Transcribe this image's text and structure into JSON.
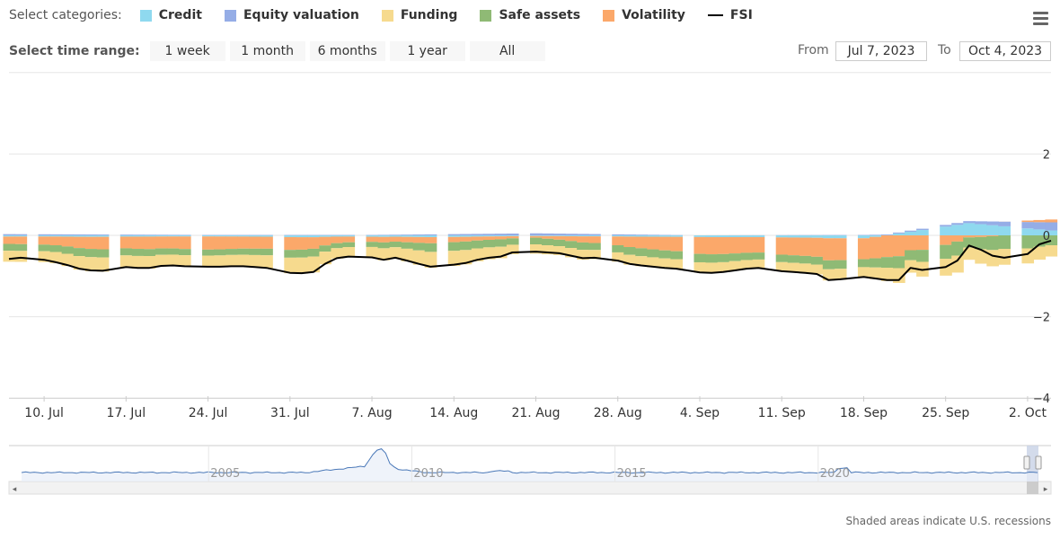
{
  "legend": {
    "title": "Select categories:",
    "items": [
      {
        "label": "Credit",
        "color": "#8fd9ef",
        "type": "area"
      },
      {
        "label": "Equity valuation",
        "color": "#95ade6",
        "type": "area"
      },
      {
        "label": "Funding",
        "color": "#f6da8e",
        "type": "area"
      },
      {
        "label": "Safe assets",
        "color": "#8fba75",
        "type": "area"
      },
      {
        "label": "Volatility",
        "color": "#fba86a",
        "type": "area"
      },
      {
        "label": "FSI",
        "color": "#000000",
        "type": "line"
      }
    ]
  },
  "menu": {
    "icon": "hamburger-menu-icon"
  },
  "range_selector": {
    "title": "Select time range:",
    "buttons": [
      "1 week",
      "1 month",
      "6 months",
      "1 year",
      "All"
    ],
    "from_label": "From",
    "from_value": "Jul 7, 2023",
    "to_label": "To",
    "to_value": "Oct 4, 2023"
  },
  "footnote": "Shaded areas indicate U.S. recessions",
  "chart_data": {
    "type": "area",
    "stacked": true,
    "x_start": "2023-07-07",
    "x_end": "2023-10-04",
    "x_tick_labels": [
      "10. Jul",
      "17. Jul",
      "24. Jul",
      "31. Jul",
      "7. Aug",
      "14. Aug",
      "21. Aug",
      "28. Aug",
      "4. Sep",
      "11. Sep",
      "18. Sep",
      "25. Sep",
      "2. Oct"
    ],
    "y_tick_labels": [
      "2",
      "0",
      "−2",
      "−4"
    ],
    "ylim": [
      -4,
      4
    ],
    "grid": true,
    "legend_position": "top-left",
    "fsi_points": [
      {
        "date": "2023-07-07",
        "value": -0.58
      },
      {
        "date": "2023-07-08",
        "value": -0.55
      },
      {
        "date": "2023-07-10",
        "value": -0.6
      },
      {
        "date": "2023-07-11",
        "value": -0.66
      },
      {
        "date": "2023-07-12",
        "value": -0.73
      },
      {
        "date": "2023-07-13",
        "value": -0.82
      },
      {
        "date": "2023-07-14",
        "value": -0.86
      },
      {
        "date": "2023-07-15",
        "value": -0.87
      },
      {
        "date": "2023-07-17",
        "value": -0.78
      },
      {
        "date": "2023-07-18",
        "value": -0.8
      },
      {
        "date": "2023-07-19",
        "value": -0.8
      },
      {
        "date": "2023-07-20",
        "value": -0.75
      },
      {
        "date": "2023-07-21",
        "value": -0.74
      },
      {
        "date": "2023-07-22",
        "value": -0.76
      },
      {
        "date": "2023-07-24",
        "value": -0.77
      },
      {
        "date": "2023-07-25",
        "value": -0.77
      },
      {
        "date": "2023-07-26",
        "value": -0.76
      },
      {
        "date": "2023-07-27",
        "value": -0.76
      },
      {
        "date": "2023-07-28",
        "value": -0.78
      },
      {
        "date": "2023-07-29",
        "value": -0.8
      },
      {
        "date": "2023-07-31",
        "value": -0.92
      },
      {
        "date": "2023-08-01",
        "value": -0.93
      },
      {
        "date": "2023-08-02",
        "value": -0.9
      },
      {
        "date": "2023-08-03",
        "value": -0.7
      },
      {
        "date": "2023-08-04",
        "value": -0.56
      },
      {
        "date": "2023-08-05",
        "value": -0.52
      },
      {
        "date": "2023-08-07",
        "value": -0.54
      },
      {
        "date": "2023-08-08",
        "value": -0.6
      },
      {
        "date": "2023-08-09",
        "value": -0.55
      },
      {
        "date": "2023-08-10",
        "value": -0.62
      },
      {
        "date": "2023-08-11",
        "value": -0.7
      },
      {
        "date": "2023-08-12",
        "value": -0.77
      },
      {
        "date": "2023-08-14",
        "value": -0.72
      },
      {
        "date": "2023-08-15",
        "value": -0.68
      },
      {
        "date": "2023-08-16",
        "value": -0.6
      },
      {
        "date": "2023-08-17",
        "value": -0.55
      },
      {
        "date": "2023-08-18",
        "value": -0.52
      },
      {
        "date": "2023-08-19",
        "value": -0.42
      },
      {
        "date": "2023-08-21",
        "value": -0.4
      },
      {
        "date": "2023-08-22",
        "value": -0.42
      },
      {
        "date": "2023-08-23",
        "value": -0.44
      },
      {
        "date": "2023-08-24",
        "value": -0.5
      },
      {
        "date": "2023-08-25",
        "value": -0.56
      },
      {
        "date": "2023-08-26",
        "value": -0.55
      },
      {
        "date": "2023-08-28",
        "value": -0.62
      },
      {
        "date": "2023-08-29",
        "value": -0.7
      },
      {
        "date": "2023-08-30",
        "value": -0.74
      },
      {
        "date": "2023-08-31",
        "value": -0.77
      },
      {
        "date": "2023-09-01",
        "value": -0.8
      },
      {
        "date": "2023-09-02",
        "value": -0.82
      },
      {
        "date": "2023-09-04",
        "value": -0.91
      },
      {
        "date": "2023-09-05",
        "value": -0.92
      },
      {
        "date": "2023-09-06",
        "value": -0.9
      },
      {
        "date": "2023-09-07",
        "value": -0.86
      },
      {
        "date": "2023-09-08",
        "value": -0.82
      },
      {
        "date": "2023-09-09",
        "value": -0.8
      },
      {
        "date": "2023-09-11",
        "value": -0.88
      },
      {
        "date": "2023-09-12",
        "value": -0.9
      },
      {
        "date": "2023-09-13",
        "value": -0.92
      },
      {
        "date": "2023-09-14",
        "value": -0.95
      },
      {
        "date": "2023-09-15",
        "value": -1.1
      },
      {
        "date": "2023-09-16",
        "value": -1.08
      },
      {
        "date": "2023-09-18",
        "value": -1.02
      },
      {
        "date": "2023-09-19",
        "value": -1.06
      },
      {
        "date": "2023-09-20",
        "value": -1.1
      },
      {
        "date": "2023-09-21",
        "value": -1.1
      },
      {
        "date": "2023-09-22",
        "value": -0.8
      },
      {
        "date": "2023-09-23",
        "value": -0.85
      },
      {
        "date": "2023-09-25",
        "value": -0.78
      },
      {
        "date": "2023-09-26",
        "value": -0.62
      },
      {
        "date": "2023-09-27",
        "value": -0.25
      },
      {
        "date": "2023-09-28",
        "value": -0.35
      },
      {
        "date": "2023-09-29",
        "value": -0.5
      },
      {
        "date": "2023-09-30",
        "value": -0.55
      },
      {
        "date": "2023-10-02",
        "value": -0.46
      },
      {
        "date": "2023-10-03",
        "value": -0.22
      },
      {
        "date": "2023-10-04",
        "value": -0.13
      }
    ],
    "components_approx": [
      {
        "date": "2023-07-07",
        "Credit": -0.05,
        "Equity valuation": 0.03,
        "Funding": -0.45,
        "Safe assets": -0.28,
        "Volatility": -0.3
      },
      {
        "date": "2023-07-24",
        "Credit": -0.04,
        "Equity valuation": 0.01,
        "Funding": -0.42,
        "Safe assets": -0.22,
        "Volatility": -0.48
      },
      {
        "date": "2023-08-07",
        "Credit": -0.05,
        "Equity valuation": 0.01,
        "Funding": -0.38,
        "Safe assets": -0.18,
        "Volatility": -0.18
      },
      {
        "date": "2023-08-21",
        "Credit": -0.02,
        "Equity valuation": 0.05,
        "Funding": -0.28,
        "Safe assets": -0.2,
        "Volatility": -0.05
      },
      {
        "date": "2023-09-04",
        "Credit": -0.05,
        "Equity valuation": 0.0,
        "Funding": -0.3,
        "Safe assets": -0.25,
        "Volatility": -0.5
      },
      {
        "date": "2023-09-18",
        "Credit": -0.08,
        "Equity valuation": 0.01,
        "Funding": -0.28,
        "Safe assets": -0.22,
        "Volatility": -0.58
      },
      {
        "date": "2023-09-27",
        "Credit": 0.3,
        "Equity valuation": 0.05,
        "Funding": -0.3,
        "Safe assets": -0.25,
        "Volatility": -0.05
      },
      {
        "date": "2023-10-04",
        "Credit": 0.12,
        "Equity valuation": 0.2,
        "Funding": -0.25,
        "Safe assets": -0.22,
        "Volatility": 0.07
      }
    ],
    "navigator": {
      "x_tick_labels": [
        "2005",
        "2010",
        "2015",
        "2020"
      ]
    }
  }
}
